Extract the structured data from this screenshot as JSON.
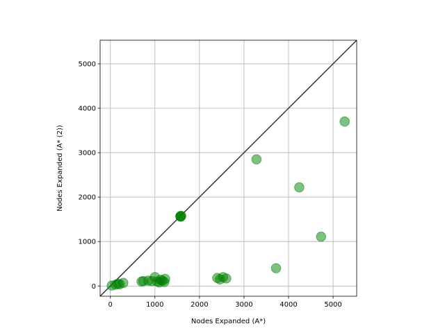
{
  "chart_data": {
    "type": "scatter",
    "title": "",
    "xlabel": "Nodes Expanded (A*)",
    "ylabel": "Nodes Expanded (A* (2))",
    "xlim": [
      -230,
      5530
    ],
    "ylim": [
      -230,
      5530
    ],
    "xticks": [
      0,
      1000,
      2000,
      3000,
      4000,
      5000
    ],
    "yticks": [
      0,
      1000,
      2000,
      3000,
      4000,
      5000
    ],
    "grid": true,
    "diagonal_line": {
      "from": [
        -230,
        -230
      ],
      "to": [
        5530,
        5530
      ],
      "color": "#333333"
    },
    "series": [
      {
        "color": "#008000",
        "alpha": 0.5,
        "points": [
          [
            30,
            10
          ],
          [
            120,
            30
          ],
          [
            170,
            50
          ],
          [
            210,
            40
          ],
          [
            290,
            70
          ],
          [
            700,
            100
          ],
          [
            740,
            110
          ],
          [
            850,
            120
          ],
          [
            930,
            110
          ],
          [
            1000,
            200
          ],
          [
            1050,
            100
          ],
          [
            1100,
            80
          ],
          [
            1130,
            140
          ],
          [
            1170,
            120
          ],
          [
            1210,
            90
          ],
          [
            1230,
            160
          ],
          [
            1570,
            1570
          ],
          [
            1580,
            1560
          ],
          [
            1590,
            1580
          ],
          [
            1575,
            1565
          ],
          [
            2400,
            180
          ],
          [
            2460,
            150
          ],
          [
            2530,
            200
          ],
          [
            2600,
            170
          ],
          [
            3280,
            2850
          ],
          [
            3720,
            400
          ],
          [
            4240,
            2220
          ],
          [
            4730,
            1110
          ],
          [
            5260,
            3700
          ]
        ]
      }
    ]
  }
}
